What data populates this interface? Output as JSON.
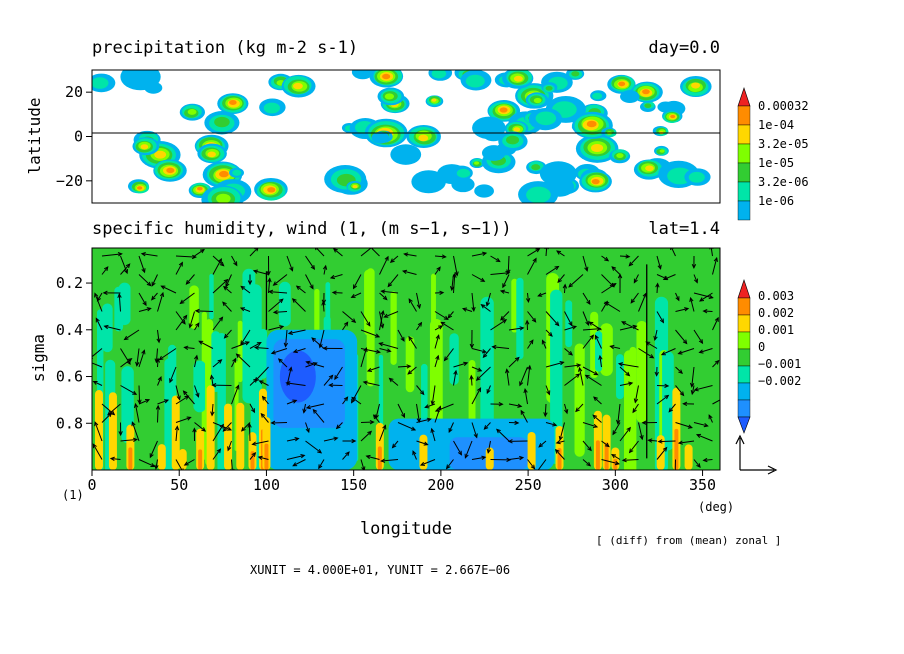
{
  "chart_data": [
    {
      "type": "heatmap",
      "title": "precipitation (kg m-2 s-1)",
      "right_title": "day=0.0",
      "ylabel": "latitude",
      "yticks": [
        "20",
        "0",
        "−20"
      ],
      "ytick_values": [
        20,
        0,
        -20
      ],
      "ylim": [
        -30,
        30
      ],
      "xlim": [
        0,
        360
      ],
      "colorbar": {
        "labels": [
          "0.00032",
          "1e-04",
          "3.2e-05",
          "1e-05",
          "3.2e-06",
          "1e-06"
        ],
        "colors": [
          "#ff8c00",
          "#ffd700",
          "#7fff00",
          "#32cd32",
          "#00e5a8",
          "#00b2ee"
        ],
        "top_color": "#ee2222",
        "top_triangle": true
      }
    },
    {
      "type": "heatmap",
      "title": "specific humidity, wind (1, (m s−1, s−1))",
      "right_title": "lat=1.4",
      "xlabel": "longitude",
      "ylabel": "sigma",
      "xticks": [
        "0",
        "50",
        "100",
        "150",
        "200",
        "250",
        "300",
        "350"
      ],
      "xtick_values": [
        0,
        50,
        100,
        150,
        200,
        250,
        300,
        350
      ],
      "xunit": "(deg)",
      "yticks": [
        "0.2",
        "0.4",
        "0.6",
        "0.8"
      ],
      "ytick_values": [
        0.2,
        0.4,
        0.6,
        0.8
      ],
      "ylim": [
        1.0,
        0.05
      ],
      "xlim": [
        0,
        360
      ],
      "colorbar": {
        "labels": [
          "0.003",
          "0.002",
          "0.001",
          "0",
          "−0.001",
          "−0.002"
        ],
        "colors": [
          "#ff8c00",
          "#ffd700",
          "#7fff00",
          "#32cd32",
          "#00e5a8",
          "#00b2ee",
          "#1e90ff"
        ],
        "top_color": "#ee2222",
        "bottom_color": "#1e5cff",
        "top_triangle": true,
        "bottom_triangle": true
      },
      "vectors": true
    }
  ],
  "panel_index": "(1)",
  "footer_note": "[ (diff) from (mean) zonal ]",
  "units_line": "XUNIT = 4.000E+01, YUNIT = 2.667E−06"
}
